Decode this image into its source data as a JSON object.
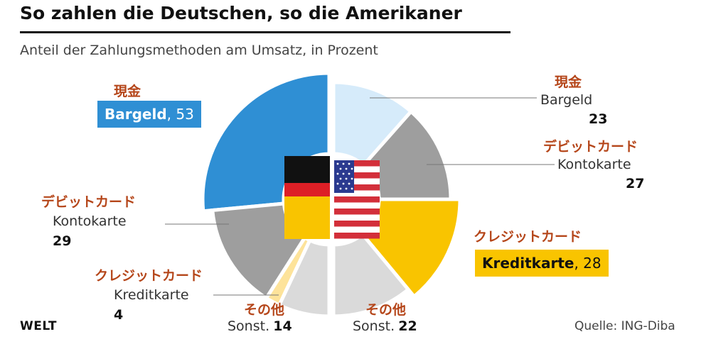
{
  "title": "So zahlen die Deutschen, so die Amerikaner",
  "subtitle": "Anteil der Zahlungsmethoden am Umsatz, in Prozent",
  "brand": "WELT",
  "source": "Quelle: ING-Diba",
  "colors": {
    "cash_de": "#2f8fd4",
    "cash_us": "#d6ebfa",
    "debit": "#9e9e9e",
    "credit_de": "#fde39a",
    "credit_us": "#f9c400",
    "other": "#dadada",
    "annotation": "#b5461a"
  },
  "labels": {
    "de_cash": {
      "jp": "現金",
      "de": "Bargeld",
      "value": "53"
    },
    "de_debit": {
      "jp": "デビットカード",
      "de": "Kontokarte",
      "value": "29"
    },
    "de_credit": {
      "jp": "クレジットカード",
      "de": "Kreditkarte",
      "value": "4"
    },
    "de_other": {
      "jp": "その他",
      "de": "Sonst.",
      "value": "14"
    },
    "us_cash": {
      "jp": "現金",
      "de": "Bargeld",
      "value": "23"
    },
    "us_debit": {
      "jp": "デビットカード",
      "de": "Kontokarte",
      "value": "27"
    },
    "us_credit": {
      "jp": "クレジットカード",
      "de": "Kreditkarte",
      "value": "28"
    },
    "us_other": {
      "jp": "その他",
      "de": "Sonst.",
      "value": "22"
    }
  },
  "chart_data": [
    {
      "type": "pie",
      "name": "Deutschland",
      "categories": [
        "Bargeld",
        "Kontokarte",
        "Kreditkarte",
        "Sonst."
      ],
      "values": [
        53,
        29,
        4,
        14
      ],
      "half": "left"
    },
    {
      "type": "pie",
      "name": "USA",
      "categories": [
        "Bargeld",
        "Kontokarte",
        "Kreditkarte",
        "Sonst."
      ],
      "values": [
        23,
        27,
        28,
        22
      ],
      "half": "right"
    }
  ]
}
